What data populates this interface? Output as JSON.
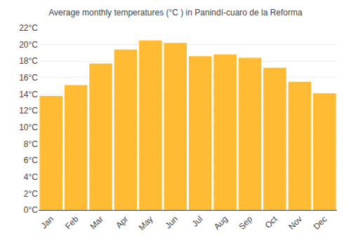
{
  "chart_data": {
    "type": "bar",
    "title": "Average monthly temperatures (°C ) in Panindí-cuaro de la Reforma",
    "categories": [
      "Jan",
      "Feb",
      "Mar",
      "Apr",
      "May",
      "Jun",
      "Jul",
      "Aug",
      "Sep",
      "Oct",
      "Nov",
      "Dec"
    ],
    "values": [
      13.8,
      15.1,
      17.7,
      19.4,
      20.5,
      20.2,
      18.6,
      18.8,
      18.4,
      17.2,
      15.5,
      14.1
    ],
    "color": "#FFBB33",
    "ylim": [
      0,
      22
    ],
    "yticks": [
      {
        "value": 0,
        "label": "0°C"
      },
      {
        "value": 2,
        "label": "2°C"
      },
      {
        "value": 4,
        "label": "4°C"
      },
      {
        "value": 6,
        "label": "6°C"
      },
      {
        "value": 8,
        "label": "8°C"
      },
      {
        "value": 10,
        "label": "10°C"
      },
      {
        "value": 12,
        "label": "12°C"
      },
      {
        "value": 14,
        "label": "14°C"
      },
      {
        "value": 16,
        "label": "16°C"
      },
      {
        "value": 18,
        "label": "18°C"
      },
      {
        "value": 20,
        "label": "20°C"
      },
      {
        "value": 22,
        "label": "22°C"
      }
    ],
    "grid": true
  }
}
